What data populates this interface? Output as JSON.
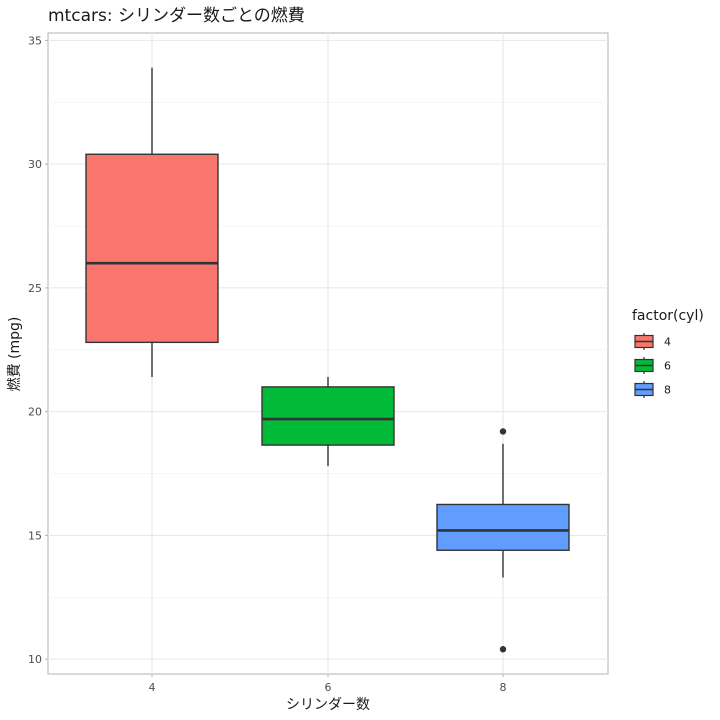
{
  "chart_data": {
    "type": "boxplot",
    "title": "mtcars: シリンダー数ごとの燃費",
    "xlabel": "シリンダー数",
    "ylabel": "燃費 (mpg)",
    "categories": [
      "4",
      "6",
      "8"
    ],
    "ylim": [
      9.4,
      35.3
    ],
    "y_ticks": [
      10,
      15,
      20,
      25,
      30,
      35
    ],
    "grid": true,
    "legend": {
      "title": "factor(cyl)",
      "position": "right",
      "items": [
        {
          "label": "4",
          "color": "#F8766D"
        },
        {
          "label": "6",
          "color": "#00BA38"
        },
        {
          "label": "8",
          "color": "#619CFF"
        }
      ]
    },
    "boxes": [
      {
        "category": "4",
        "min": 21.4,
        "q1": 22.8,
        "median": 26.0,
        "q3": 30.4,
        "max": 33.9,
        "outliers": [],
        "color": "#F8766D"
      },
      {
        "category": "6",
        "min": 17.8,
        "q1": 18.65,
        "median": 19.7,
        "q3": 21.0,
        "max": 21.4,
        "outliers": [],
        "color": "#00BA38"
      },
      {
        "category": "8",
        "min": 13.3,
        "q1": 14.4,
        "median": 15.2,
        "q3": 16.25,
        "max": 18.7,
        "outliers": [
          19.2,
          10.4
        ],
        "color": "#619CFF"
      }
    ]
  }
}
